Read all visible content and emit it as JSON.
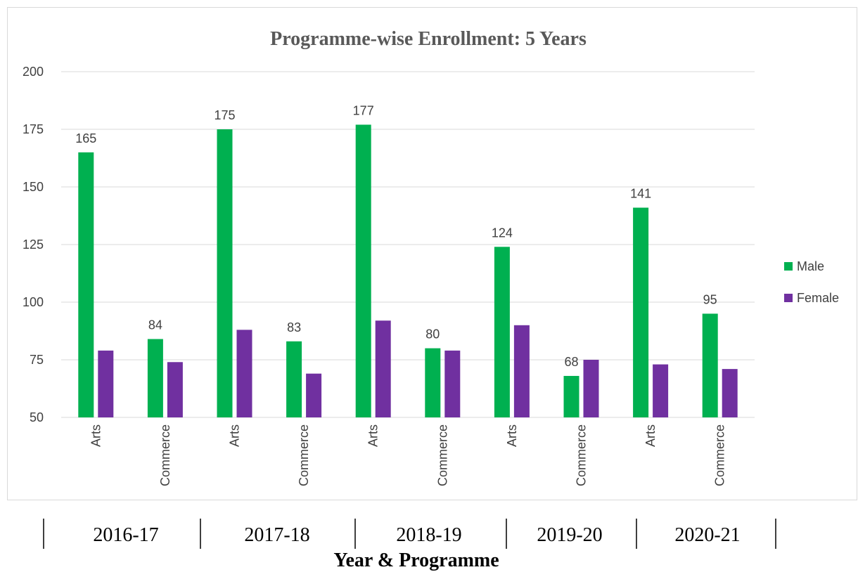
{
  "chart_data": {
    "type": "bar",
    "title": "Programme-wise Enrollment: 5 Years",
    "xlabel": "Year & Programme",
    "ylabel": "",
    "ylim": [
      50,
      200
    ],
    "yticks": [
      "50",
      "75",
      "100",
      "125",
      "150",
      "175",
      "200"
    ],
    "grid": true,
    "legend_position": "right",
    "groups": [
      "2016-17",
      "2017-18",
      "2018-19",
      "2019-20",
      "2020-21"
    ],
    "categories": [
      "Arts",
      "Commerce",
      "Arts",
      "Commerce",
      "Arts",
      "Commerce",
      "Arts",
      "Commerce",
      "Arts",
      "Commerce"
    ],
    "series": [
      {
        "name": "Male",
        "color": "#00b050",
        "values": [
          165,
          84,
          175,
          83,
          177,
          80,
          124,
          68,
          141,
          95
        ],
        "labels": [
          "165",
          "84",
          "175",
          "83",
          "177",
          "80",
          "124",
          "68",
          "141",
          "95"
        ]
      },
      {
        "name": "Female",
        "color": "#7030a0",
        "values": [
          79,
          74,
          88,
          69,
          92,
          79,
          90,
          75,
          73,
          71
        ]
      }
    ]
  }
}
